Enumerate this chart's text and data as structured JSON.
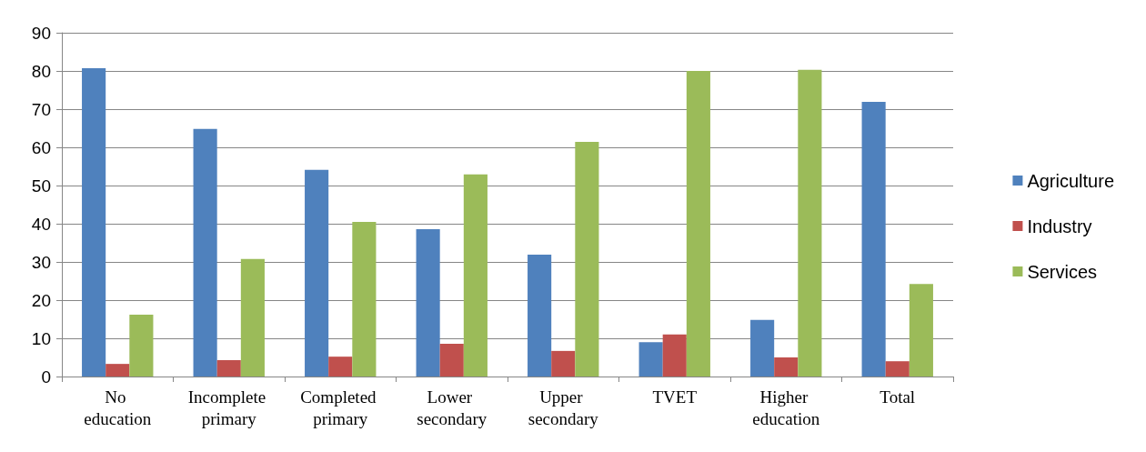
{
  "chart_data": {
    "type": "bar",
    "categories": [
      "No education",
      "Incomplete primary",
      "Completed primary",
      "Lower secondary",
      "Upper secondary",
      "TVET",
      "Higher education",
      "Total"
    ],
    "series": [
      {
        "name": "Agriculture",
        "color": "#4f81bd",
        "values": [
          80.7,
          64.8,
          54.1,
          38.6,
          31.9,
          9.0,
          14.8,
          71.9
        ]
      },
      {
        "name": "Industry",
        "color": "#c0504d",
        "values": [
          3.3,
          4.3,
          5.2,
          8.6,
          6.7,
          11.0,
          5.0,
          4.0
        ]
      },
      {
        "name": "Services",
        "color": "#9bbb59",
        "values": [
          16.2,
          30.8,
          40.5,
          52.9,
          61.4,
          80.0,
          80.3,
          24.2
        ]
      }
    ],
    "ylim": [
      0,
      90
    ],
    "yticks": [
      0,
      10,
      20,
      30,
      40,
      50,
      60,
      70,
      80,
      90
    ],
    "grid": "y",
    "legend": "right"
  }
}
